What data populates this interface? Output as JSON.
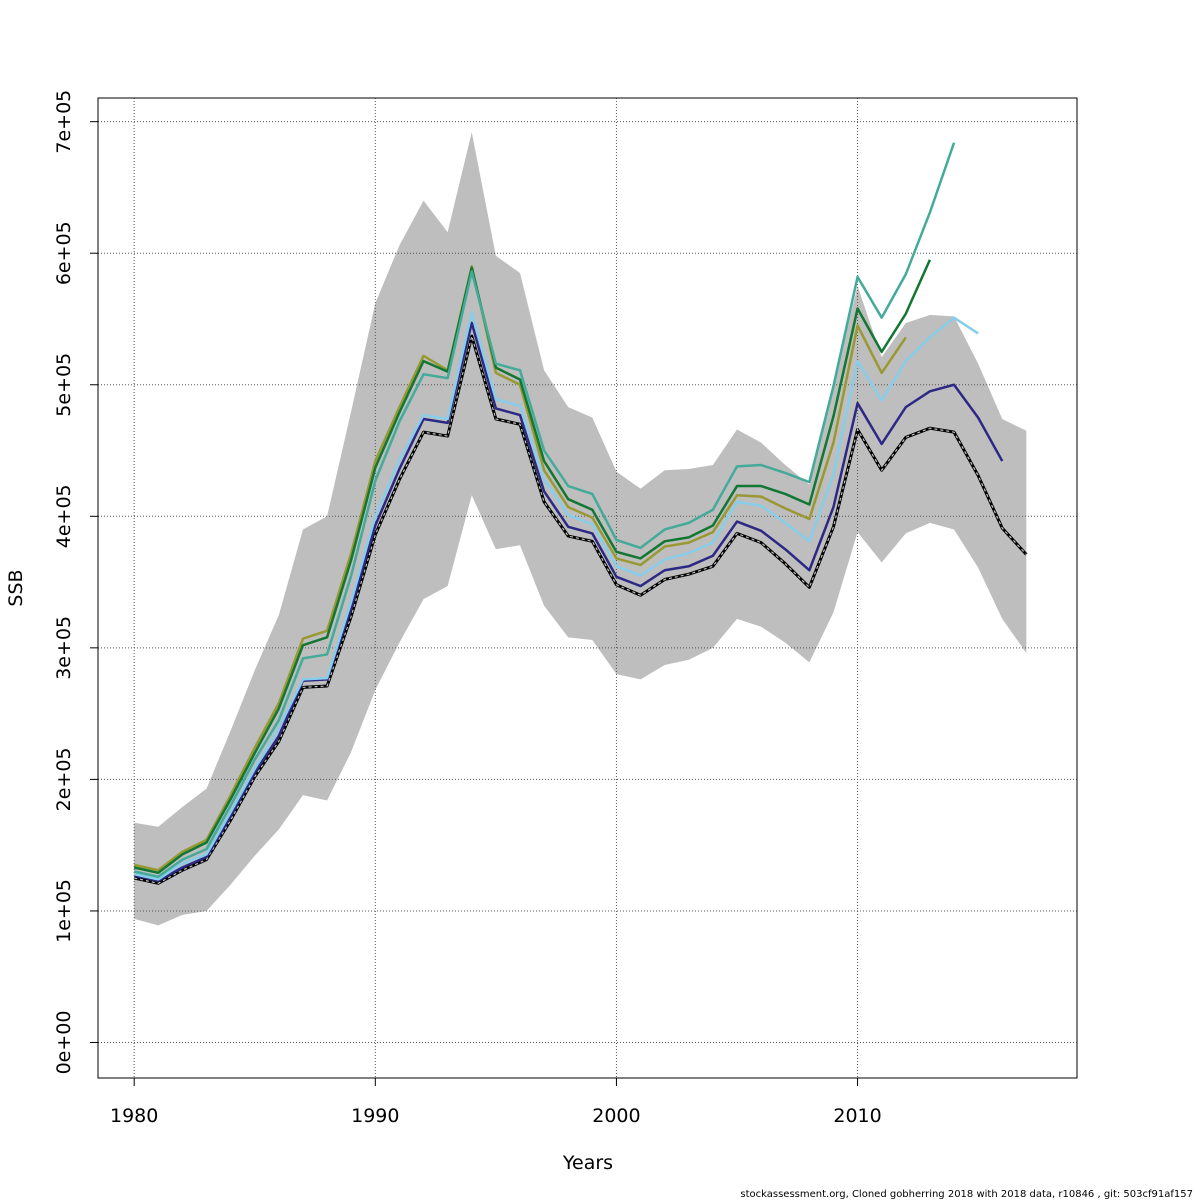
{
  "chart_data": {
    "type": "line",
    "xlabel": "Years",
    "ylabel": "SSB",
    "xlim": [
      1978.5,
      2019.1
    ],
    "ylim": [
      -27000,
      718000
    ],
    "x_ticks": [
      1980,
      1990,
      2000,
      2010
    ],
    "x_tick_labels": [
      "1980",
      "1990",
      "2000",
      "2010"
    ],
    "y_ticks": [
      0,
      100000,
      200000,
      300000,
      400000,
      500000,
      600000,
      700000
    ],
    "y_tick_labels": [
      "0e+00",
      "1e+05",
      "2e+05",
      "3e+05",
      "4e+05",
      "5e+05",
      "6e+05",
      "7e+05"
    ],
    "grid": true,
    "band": {
      "years": [
        1980,
        1981,
        1982,
        1983,
        1984,
        1985,
        1986,
        1987,
        1988,
        1989,
        1990,
        1991,
        1992,
        1993,
        1994,
        1995,
        1996,
        1997,
        1998,
        1999,
        2000,
        2001,
        2002,
        2003,
        2004,
        2005,
        2006,
        2007,
        2008,
        2009,
        2010,
        2011,
        2012,
        2013,
        2014,
        2015,
        2016,
        2017
      ],
      "upper": [
        167000,
        164000,
        179000,
        193000,
        237000,
        283000,
        325000,
        390000,
        400000,
        480000,
        562000,
        606000,
        640000,
        616000,
        692000,
        598000,
        585000,
        511000,
        483000,
        475000,
        434000,
        421000,
        435000,
        436000,
        439000,
        466000,
        456000,
        439000,
        424000,
        500000,
        575000,
        521000,
        547000,
        553000,
        552000,
        516000,
        474000,
        465000
      ],
      "lower": [
        94000,
        89000,
        97000,
        100000,
        120000,
        142000,
        162000,
        188000,
        184000,
        221000,
        268000,
        304000,
        337000,
        347000,
        416000,
        375000,
        378000,
        332000,
        308000,
        306000,
        280000,
        276000,
        287000,
        291000,
        300000,
        322000,
        316000,
        304000,
        289000,
        327000,
        388000,
        365000,
        387000,
        395000,
        390000,
        361000,
        322000,
        296000
      ],
      "color": "#bebebe"
    },
    "series": [
      {
        "color": "#000000",
        "dashed": true,
        "x": [
          1980,
          1981,
          1982,
          1983,
          1984,
          1985,
          1986,
          1987,
          1988,
          1989,
          1990,
          1991,
          1992,
          1993,
          1994,
          1995,
          1996,
          1997,
          1998,
          1999,
          2000,
          2001,
          2002,
          2003,
          2004,
          2005,
          2006,
          2007,
          2008,
          2009,
          2010,
          2011,
          2012,
          2013,
          2014,
          2015,
          2016,
          2017
        ],
        "y": [
          125000,
          121000,
          131000,
          139000,
          169000,
          202000,
          229000,
          270000,
          271000,
          324000,
          386000,
          428000,
          464000,
          461000,
          537000,
          474000,
          470000,
          411000,
          385000,
          381000,
          348000,
          340000,
          352000,
          356000,
          362000,
          387000,
          380000,
          364000,
          346000,
          392000,
          466000,
          435000,
          460000,
          467000,
          464000,
          431000,
          391000,
          371000
        ]
      },
      {
        "color": "#2c2885",
        "dashed": false,
        "x": [
          1980,
          1981,
          1982,
          1983,
          1984,
          1985,
          1986,
          1987,
          1988,
          1989,
          1990,
          1991,
          1992,
          1993,
          1994,
          1995,
          1996,
          1997,
          1998,
          1999,
          2000,
          2001,
          2002,
          2003,
          2004,
          2005,
          2006,
          2007,
          2008,
          2009,
          2010,
          2011,
          2012,
          2013,
          2014,
          2015,
          2016
        ],
        "y": [
          127000,
          123000,
          133000,
          141000,
          172000,
          205000,
          233000,
          275000,
          276000,
          330000,
          393000,
          436000,
          474000,
          471000,
          547000,
          482000,
          477000,
          419000,
          392000,
          387000,
          354000,
          347000,
          359000,
          362000,
          370000,
          396000,
          389000,
          375000,
          359000,
          407000,
          486000,
          455000,
          483000,
          495000,
          500000,
          475000,
          442000
        ]
      },
      {
        "color": "#87ceeb",
        "dashed": false,
        "x": [
          1980,
          1981,
          1982,
          1983,
          1984,
          1985,
          1986,
          1987,
          1988,
          1989,
          1990,
          1991,
          1992,
          1993,
          1994,
          1995,
          1996,
          1997,
          1998,
          1999,
          2000,
          2001,
          2002,
          2003,
          2004,
          2005,
          2006,
          2007,
          2008,
          2009,
          2010,
          2011,
          2012,
          2013,
          2014,
          2015
        ],
        "y": [
          128000,
          124000,
          136000,
          143000,
          175000,
          208000,
          239000,
          276000,
          277000,
          335000,
          400000,
          443000,
          477000,
          474000,
          555000,
          489000,
          484000,
          428000,
          401000,
          394000,
          362000,
          355000,
          367000,
          372000,
          380000,
          411000,
          408000,
          395000,
          381000,
          432000,
          518000,
          488000,
          518000,
          536000,
          551000,
          539000
        ]
      },
      {
        "color": "#999933",
        "dashed": false,
        "x": [
          1980,
          1981,
          1982,
          1983,
          1984,
          1985,
          1986,
          1987,
          1988,
          1989,
          1990,
          1991,
          1992,
          1993,
          1994,
          1995,
          1996,
          1997,
          1998,
          1999,
          2000,
          2001,
          2002,
          2003,
          2004,
          2005,
          2006,
          2007,
          2008,
          2009,
          2010,
          2011,
          2012
        ],
        "y": [
          135000,
          131000,
          145000,
          154000,
          188000,
          224000,
          258000,
          307000,
          313000,
          372000,
          442000,
          483000,
          522000,
          511000,
          590000,
          509000,
          500000,
          435000,
          407000,
          399000,
          368000,
          363000,
          377000,
          380000,
          388000,
          416000,
          415000,
          406000,
          398000,
          456000,
          545000,
          509000,
          536000
        ]
      },
      {
        "color": "#117733",
        "dashed": false,
        "x": [
          1980,
          1981,
          1982,
          1983,
          1984,
          1985,
          1986,
          1987,
          1988,
          1989,
          1990,
          1991,
          1992,
          1993,
          1994,
          1995,
          1996,
          1997,
          1998,
          1999,
          2000,
          2001,
          2002,
          2003,
          2004,
          2005,
          2006,
          2007,
          2008,
          2009,
          2010,
          2011,
          2012,
          2013
        ],
        "y": [
          133000,
          129000,
          143000,
          152000,
          185000,
          220000,
          254000,
          302000,
          308000,
          367000,
          437000,
          479000,
          518000,
          510000,
          589000,
          513000,
          504000,
          442000,
          413000,
          405000,
          373000,
          368000,
          381000,
          384000,
          393000,
          423000,
          423000,
          417000,
          409000,
          476000,
          558000,
          525000,
          554000,
          595000
        ]
      },
      {
        "color": "#44aa99",
        "dashed": false,
        "x": [
          1980,
          1981,
          1982,
          1983,
          1984,
          1985,
          1986,
          1987,
          1988,
          1989,
          1990,
          1991,
          1992,
          1993,
          1994,
          1995,
          1996,
          1997,
          1998,
          1999,
          2000,
          2001,
          2002,
          2003,
          2004,
          2005,
          2006,
          2007,
          2008,
          2009,
          2010,
          2011,
          2012,
          2013,
          2014
        ],
        "y": [
          130000,
          126000,
          139000,
          147000,
          180000,
          215000,
          245000,
          292000,
          295000,
          355000,
          427000,
          472000,
          508000,
          505000,
          586000,
          516000,
          511000,
          450000,
          423000,
          417000,
          382000,
          376000,
          390000,
          395000,
          405000,
          438000,
          439000,
          433000,
          426000,
          499000,
          582000,
          551000,
          584000,
          631000,
          684000
        ]
      }
    ],
    "footer": "stockassessment.org, Cloned  gobherring  2018  with  2018  data, r10846 , git: 503cf91af157"
  }
}
